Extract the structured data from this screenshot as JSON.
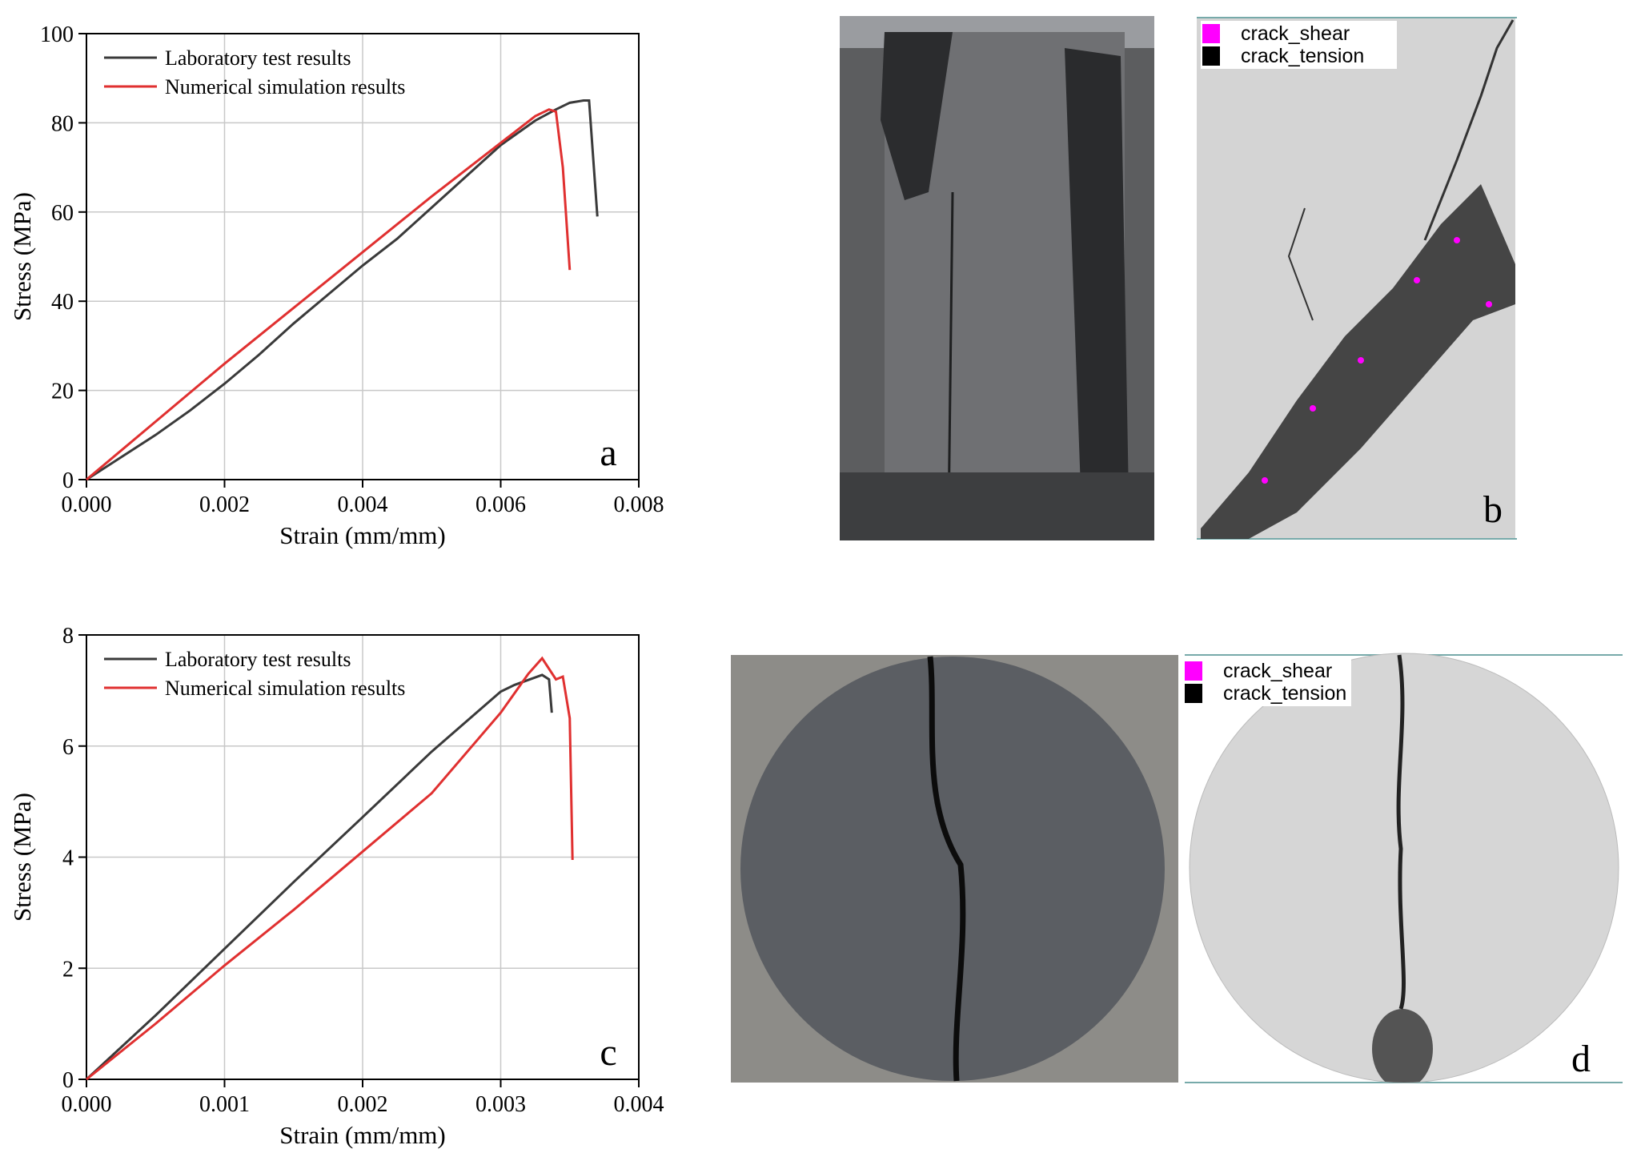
{
  "chart_data": [
    {
      "type": "line",
      "xlabel": "Strain (mm/mm)",
      "ylabel": "Stress (MPa)",
      "annotation": "a",
      "xlim": [
        0,
        0.008
      ],
      "ylim": [
        0,
        100
      ],
      "xticks": [
        {
          "value": 0,
          "label": "0.000"
        },
        {
          "value": 0.002,
          "label": "0.002"
        },
        {
          "value": 0.004,
          "label": "0.004"
        },
        {
          "value": 0.006,
          "label": "0.006"
        },
        {
          "value": 0.008,
          "label": "0.008"
        }
      ],
      "yticks": [
        0,
        20,
        40,
        60,
        80,
        100
      ],
      "grid": true,
      "legend": "upper left",
      "series": [
        {
          "name": "Laboratory test results",
          "color": "#3a3a3a",
          "x": [
            0,
            0.0005,
            0.001,
            0.0015,
            0.002,
            0.0025,
            0.003,
            0.0035,
            0.004,
            0.0045,
            0.005,
            0.0055,
            0.006,
            0.0065,
            0.0068,
            0.007,
            0.0072,
            0.00728,
            0.0074
          ],
          "values": [
            0,
            5,
            10,
            15.5,
            21.5,
            28,
            35,
            41.5,
            48,
            54,
            61,
            68,
            75,
            80.5,
            83,
            84.5,
            85,
            85,
            59
          ]
        },
        {
          "name": "Numerical simulation results",
          "color": "#e03030",
          "x": [
            0,
            0.0005,
            0.001,
            0.002,
            0.003,
            0.004,
            0.005,
            0.006,
            0.0065,
            0.0067,
            0.0068,
            0.0069,
            0.007
          ],
          "values": [
            0,
            6.5,
            13,
            26,
            38.5,
            51,
            63.5,
            75.5,
            81.5,
            83,
            82.5,
            70,
            47
          ]
        }
      ]
    },
    {
      "type": "line",
      "xlabel": "Strain (mm/mm)",
      "ylabel": "Stress (MPa)",
      "annotation": "c",
      "xlim": [
        0,
        0.004
      ],
      "ylim": [
        0,
        8
      ],
      "xticks": [
        {
          "value": 0,
          "label": "0.000"
        },
        {
          "value": 0.001,
          "label": "0.001"
        },
        {
          "value": 0.002,
          "label": "0.002"
        },
        {
          "value": 0.003,
          "label": "0.003"
        },
        {
          "value": 0.004,
          "label": "0.004"
        }
      ],
      "yticks": [
        0,
        2,
        4,
        6,
        8
      ],
      "grid": true,
      "legend": "upper left",
      "series": [
        {
          "name": "Laboratory test results",
          "color": "#3a3a3a",
          "x": [
            0,
            0.0005,
            0.001,
            0.0015,
            0.002,
            0.0025,
            0.003,
            0.0031,
            0.0033,
            0.00335,
            0.00337
          ],
          "values": [
            0,
            1.15,
            2.35,
            3.55,
            4.72,
            5.9,
            6.98,
            7.1,
            7.28,
            7.2,
            6.6
          ]
        },
        {
          "name": "Numerical simulation results",
          "color": "#e03030",
          "x": [
            0,
            0.0005,
            0.001,
            0.0015,
            0.002,
            0.0025,
            0.003,
            0.0032,
            0.0033,
            0.0034,
            0.00345,
            0.0035,
            0.00352
          ],
          "values": [
            0,
            1.0,
            2.05,
            3.05,
            4.1,
            5.15,
            6.6,
            7.3,
            7.58,
            7.2,
            7.25,
            6.5,
            3.95
          ]
        }
      ]
    }
  ],
  "panels": [
    {
      "label": "b",
      "legend": [
        {
          "name": "crack_shear",
          "color": "#ff00ff"
        },
        {
          "name": "crack_tension",
          "color": "#000000"
        }
      ]
    },
    {
      "label": "d",
      "legend": [
        {
          "name": "crack_shear",
          "color": "#ff00ff"
        },
        {
          "name": "crack_tension",
          "color": "#000000"
        }
      ]
    }
  ]
}
